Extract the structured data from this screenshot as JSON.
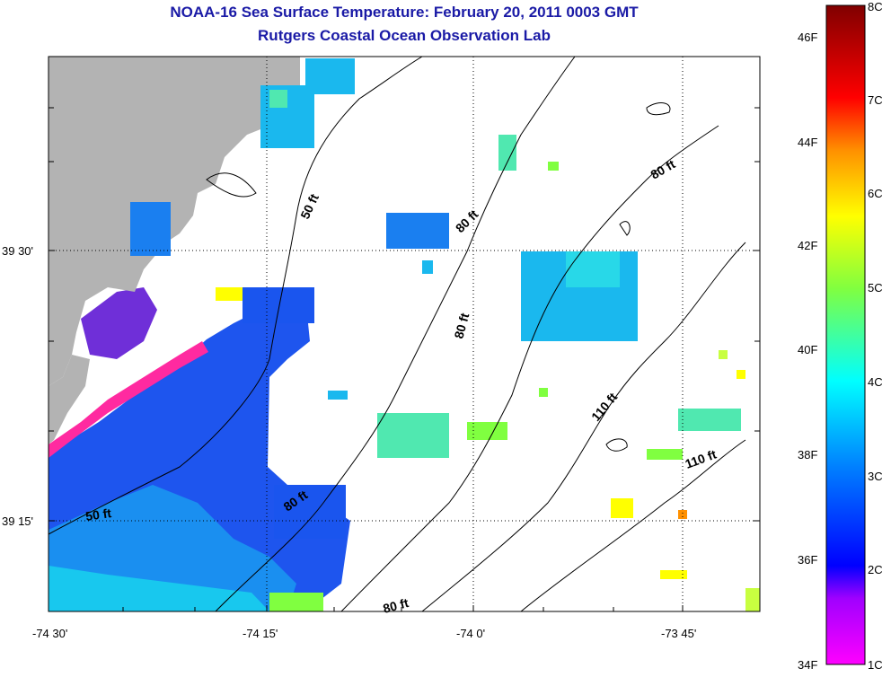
{
  "title": "NOAA-16 Sea Surface Temperature:  February 20, 2011 0003 GMT",
  "subtitle": "Rutgers Coastal Ocean Observation Lab",
  "map": {
    "x_ticks": [
      {
        "lon": -74.5,
        "label": "-74 30'"
      },
      {
        "lon": -74.25,
        "label": "-74 15'"
      },
      {
        "lon": -74.0,
        "label": "-74 0'"
      },
      {
        "lon": -73.75,
        "label": "-73 45'"
      }
    ],
    "y_ticks": [
      {
        "lat": 39.5,
        "label": "39 30'"
      },
      {
        "lat": 39.25,
        "label": "39 15'"
      }
    ],
    "depth_labels": [
      "50 ft",
      "80 ft",
      "80 ft",
      "80 ft",
      "80 ft",
      "80 ft",
      "110 ft",
      "110 ft",
      "50 ft"
    ],
    "colors": {
      "land": "#b3b3b3",
      "no_data": "#ffffff",
      "contour": "#000000"
    }
  },
  "colorbar": {
    "fahrenheit_labels": [
      "46F",
      "44F",
      "42F",
      "40F",
      "38F",
      "36F",
      "34F"
    ],
    "celsius_labels": [
      "8C",
      "7C",
      "6C",
      "5C",
      "4C",
      "3C",
      "2C",
      "1C"
    ],
    "range_c": [
      1,
      8
    ],
    "colors": [
      "#ff00ff",
      "#0000ff",
      "#00ffff",
      "#00ff88",
      "#ffff00",
      "#ff8800",
      "#ff0000",
      "#800000"
    ]
  }
}
